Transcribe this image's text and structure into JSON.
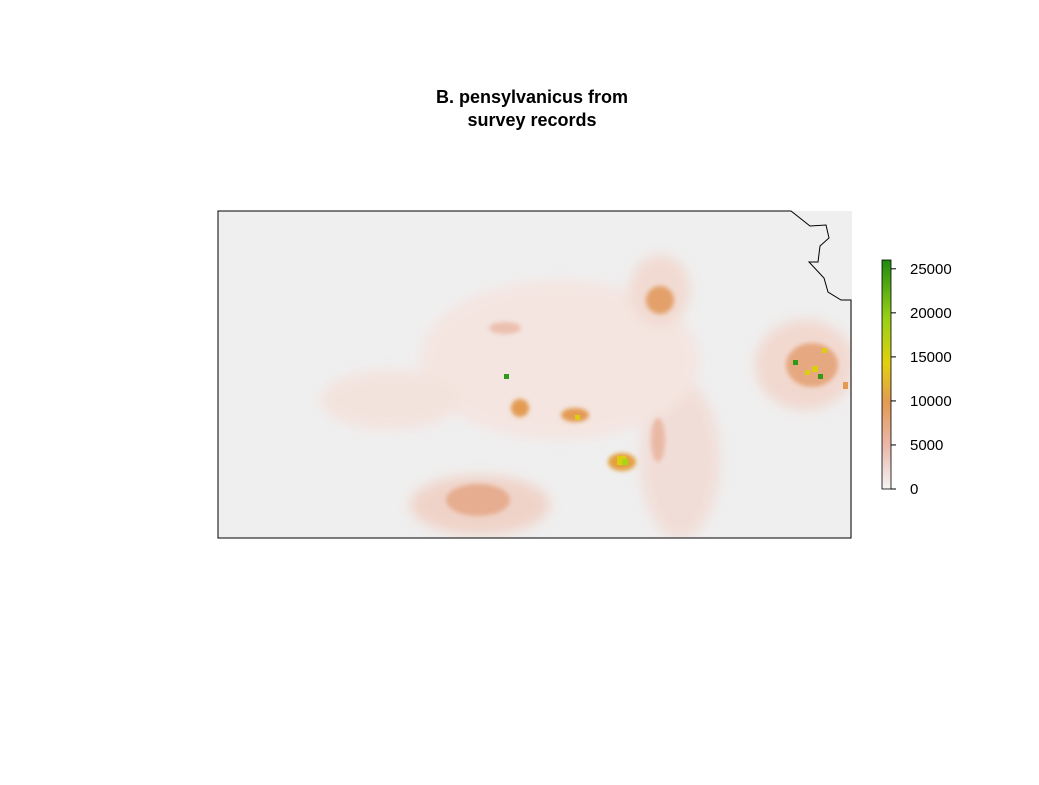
{
  "title": {
    "line1": "B. pensylvanicus from",
    "line2": "survey records"
  },
  "legend": {
    "ticks": [
      {
        "value": 0,
        "label": "0"
      },
      {
        "value": 5000,
        "label": "5000"
      },
      {
        "value": 10000,
        "label": "10000"
      },
      {
        "value": 15000,
        "label": "15000"
      },
      {
        "value": 20000,
        "label": "20000"
      },
      {
        "value": 25000,
        "label": "25000"
      }
    ],
    "range": [
      0,
      26000
    ],
    "colors": [
      "#f2f2f2",
      "#e8b0a0",
      "#e39a52",
      "#e2c814",
      "#a8d614",
      "#1e8a10"
    ]
  },
  "colors": {
    "background_raster": "#efefef",
    "low": "#f3d2c8",
    "mid": "#e3a06b",
    "high": "#dccc12",
    "peak": "#2f9a18",
    "outline": "#000000"
  },
  "map": {
    "region": "Kansas",
    "hotspots": [
      {
        "name": "northeast cluster",
        "level": 16000
      },
      {
        "name": "south-central cluster",
        "level": 17000
      },
      {
        "name": "central point",
        "level": 24000
      },
      {
        "name": "central cluster",
        "level": 9000
      },
      {
        "name": "north-central cluster",
        "level": 9000
      },
      {
        "name": "south cluster",
        "level": 7000
      }
    ]
  }
}
